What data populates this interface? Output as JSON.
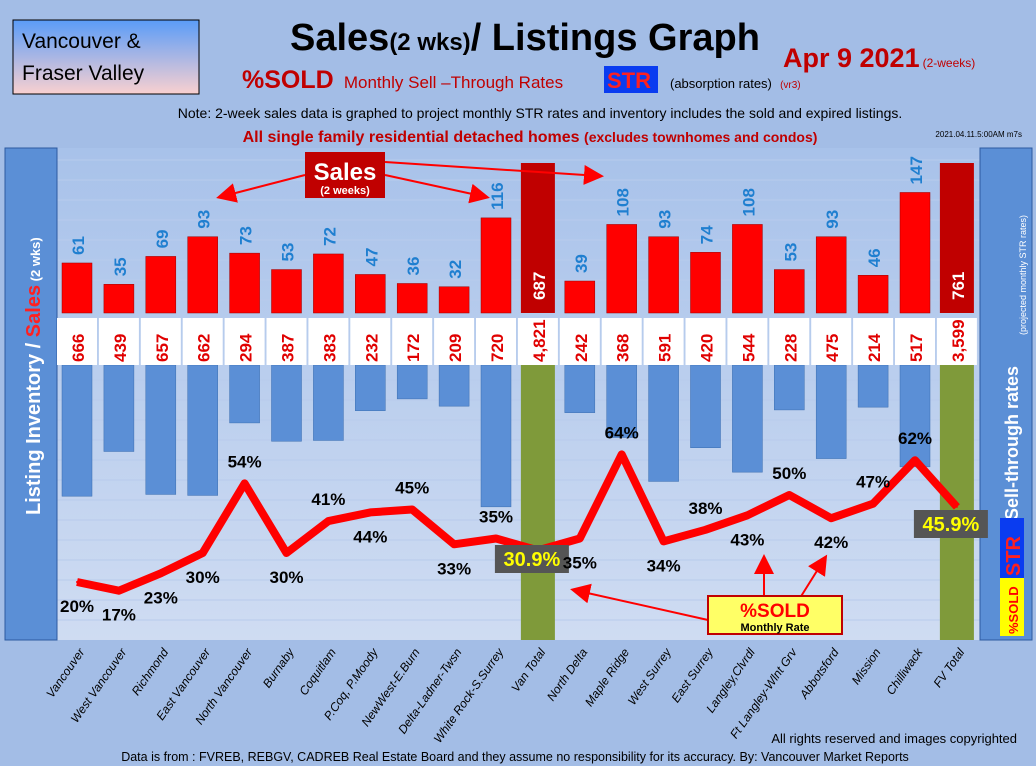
{
  "region_box": [
    "Vancouver &",
    "Fraser Valley"
  ],
  "title_main": "Sales",
  "title_wks": "(2 wks)",
  "title_rest": "/ Listings Graph",
  "date": "Apr  9 2021",
  "date_note": "(2-weeks)",
  "subtitle": {
    "sold": "%SOLD",
    "rest": "Monthly Sell –Through Rates",
    "str": "STR",
    "absorption": "(absorption rates)",
    "ver": "(vr3)"
  },
  "note": "Note: 2-week sales data is graphed to project monthly STR rates and inventory includes the sold and expired listings.",
  "homes": "All single family residential detached homes",
  "homes_note": "(excludes townhomes and condos)",
  "stamp": "2021.04.11.5:00AM m7s",
  "left_axis": {
    "a": "Listing Inventory / ",
    "b": "Sales",
    "c": " (2  wks)"
  },
  "right_axis": {
    "a": "Sell-through rates",
    "b": "(projected monthly STR rates)"
  },
  "sales_callout": {
    "a": "Sales",
    "b": "(2 weeks)"
  },
  "sold_callout": {
    "a": "%SOLD",
    "b": "Monthly Rate"
  },
  "right_badge": {
    "str": "STR",
    "sold": "%SOLD"
  },
  "footer": {
    "rights": "All rights reserved and  images copyrighted",
    "source": "Data is from : FVREB, REBGV, CADREB Real Estate Board and they assume no responsibility for its accuracy. By: Vancouver Market Reports"
  },
  "colors": {
    "sales": "#ff0000",
    "total_sales": "#c00000",
    "inventory": "#5b8fd6",
    "total_inv": "#7f9a3a",
    "line": "#ff0000"
  },
  "chart_data": {
    "type": "bar",
    "categories": [
      "Vancouver",
      "West Vancouver",
      "Richmond",
      "East Vancouver",
      "North Vancouver",
      "Burnaby",
      "Coquitlam",
      "P.Coq, P.Moody",
      "NewWest-E.Burn",
      "Delta-Ladner-Twsn",
      "White Rock-S.Surrey",
      "Van Total",
      "North Delta",
      "Maple Ridge",
      "West Surrey",
      "East Surrey",
      "Langley,Clvrdl",
      "Ft Langley-Wlnt Grv",
      "Abbotsford",
      "Mission",
      "Chilliwack",
      "FV Total"
    ],
    "series": [
      {
        "name": "Sales (2 weeks)",
        "values": [
          61,
          35,
          69,
          93,
          73,
          53,
          72,
          47,
          36,
          32,
          116,
          687,
          39,
          108,
          93,
          74,
          108,
          53,
          93,
          46,
          147,
          761
        ]
      },
      {
        "name": "Listing Inventory",
        "values": [
          "666",
          "439",
          "657",
          "662",
          "294",
          "387",
          "383",
          "232",
          "172",
          "209",
          "720",
          "4,821",
          "242",
          "368",
          "591",
          "420",
          "544",
          "228",
          "475",
          "214",
          "517",
          "3,599"
        ]
      },
      {
        "name": "%SOLD Monthly Rate",
        "values": [
          20,
          17,
          23,
          30,
          54,
          30,
          41,
          44,
          45,
          33,
          35,
          30.9,
          35,
          64,
          34,
          38,
          43,
          50,
          42,
          47,
          62,
          45.9
        ],
        "labels": [
          "20%",
          "17%",
          "23%",
          "30%",
          "54%",
          "30%",
          "41%",
          "44%",
          "45%",
          "33%",
          "35%",
          "30.9%",
          "35%",
          "64%",
          "34%",
          "38%",
          "43%",
          "50%",
          "42%",
          "47%",
          "62%",
          "45.9%"
        ]
      }
    ],
    "totals": [
      "Van Total",
      "FV Total"
    ]
  }
}
